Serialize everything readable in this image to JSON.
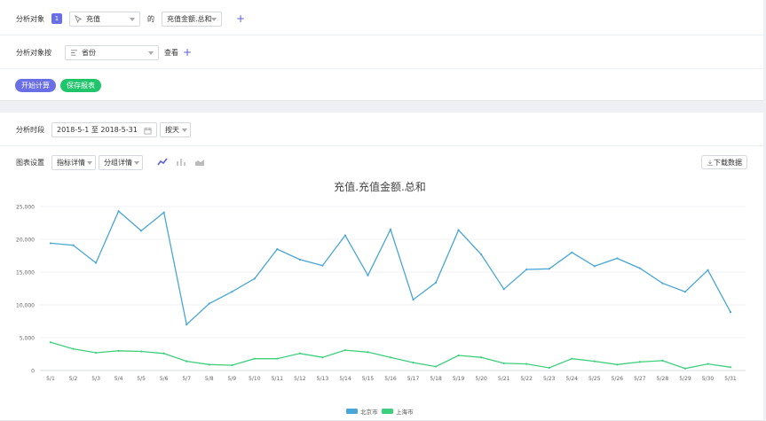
{
  "top": {
    "analysis_target_label": "分析对象",
    "badge": "1",
    "event_select": "充值",
    "of_label": "的",
    "metric_select": "充值金额.总和",
    "group_by_label": "分析对象按",
    "group_select": "省份",
    "view_label": "查看",
    "start_button": "开始计算",
    "save_button": "保存报表"
  },
  "bottom": {
    "period_label": "分析时段",
    "date_range": "2018-5-1 至 2018-5-31",
    "granularity": "按天",
    "chart_settings_label": "图表设置",
    "metric_detail": "指标详情",
    "group_detail": "分组详情",
    "download_button": "下载数据"
  },
  "colors": {
    "beijing": "#4aa6d6",
    "shanghai": "#3ecf7d",
    "accent": "#5b61d9",
    "save": "#1fc46b"
  },
  "chart_data": {
    "type": "line",
    "title": "充值.充值金额.总和",
    "categories": [
      "5/1",
      "5/2",
      "5/3",
      "5/4",
      "5/5",
      "5/6",
      "5/7",
      "5/8",
      "5/9",
      "5/10",
      "5/11",
      "5/12",
      "5/13",
      "5/14",
      "5/15",
      "5/16",
      "5/17",
      "5/18",
      "5/19",
      "5/20",
      "5/21",
      "5/22",
      "5/23",
      "5/24",
      "5/25",
      "5/26",
      "5/27",
      "5/28",
      "5/29",
      "5/30",
      "5/31"
    ],
    "yticks": [
      "0",
      "5,000",
      "10,000",
      "15,000",
      "20,000",
      "25,000"
    ],
    "ylim": [
      0,
      25000
    ],
    "grid": true,
    "legend_position": "bottom-center",
    "series": [
      {
        "name": "北京市",
        "color": "#4aa6d6",
        "values": [
          19400,
          19100,
          16400,
          24300,
          21300,
          24100,
          7000,
          10200,
          12000,
          14000,
          18500,
          16900,
          16000,
          20600,
          14500,
          21500,
          10800,
          13400,
          21400,
          17700,
          12400,
          15400,
          15500,
          18000,
          15900,
          17100,
          15600,
          13300,
          12000,
          15300,
          8900
        ]
      },
      {
        "name": "上海市",
        "color": "#3ecf7d",
        "values": [
          4300,
          3300,
          2700,
          3000,
          2900,
          2600,
          1400,
          900,
          800,
          1800,
          1800,
          2600,
          2000,
          3100,
          2800,
          2000,
          1200,
          600,
          2300,
          2000,
          1100,
          1000,
          400,
          1800,
          1400,
          900,
          1300,
          1500,
          300,
          1000,
          500
        ]
      }
    ]
  }
}
